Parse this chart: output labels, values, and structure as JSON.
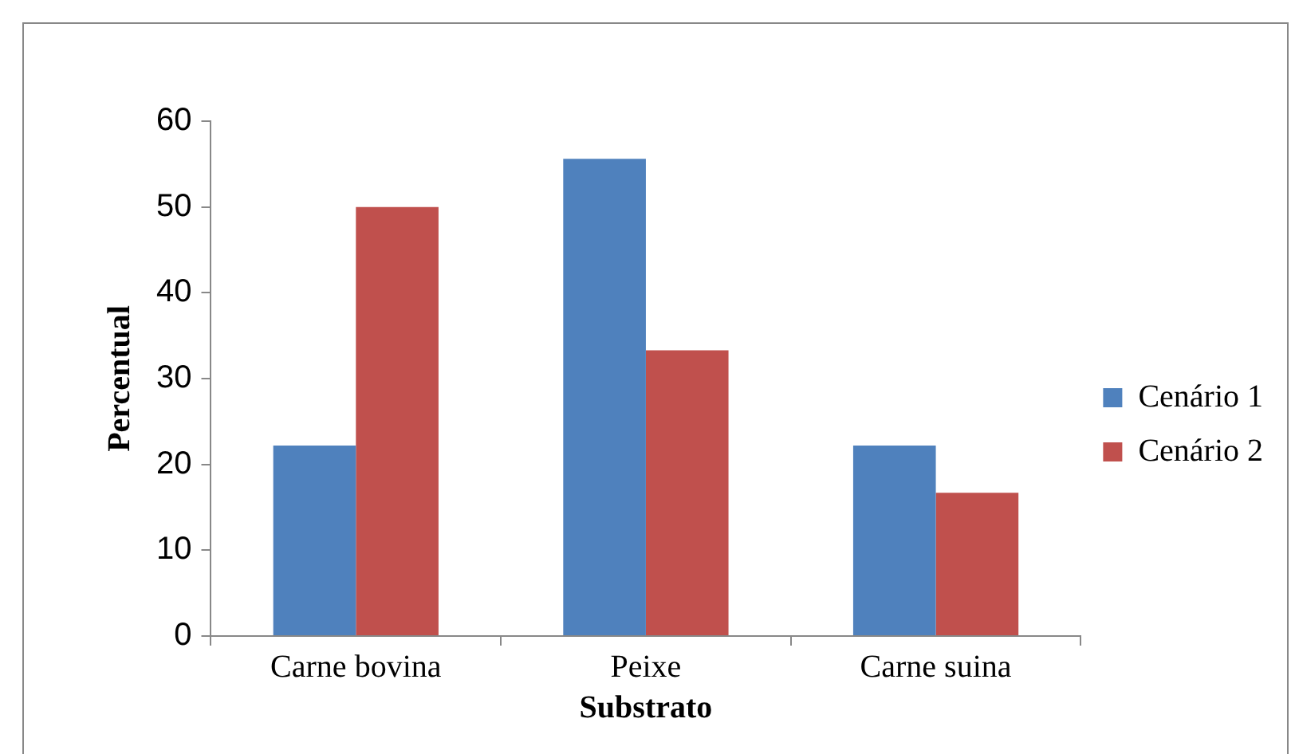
{
  "chart_data": {
    "type": "bar",
    "xlabel": "Substrato",
    "ylabel": "Percentual",
    "categories": [
      "Carne bovina",
      "Peixe",
      "Carne suina"
    ],
    "series": [
      {
        "name": "Cenário 1",
        "color": "#4f81bd",
        "values": [
          22.2,
          55.6,
          22.2
        ]
      },
      {
        "name": "Cenário 2",
        "color": "#c0504d",
        "values": [
          50,
          33.3,
          16.7
        ]
      }
    ],
    "ylim": [
      0,
      60
    ],
    "yticks": [
      0,
      10,
      20,
      30,
      40,
      50,
      60
    ],
    "grid": false,
    "legend": "right"
  }
}
